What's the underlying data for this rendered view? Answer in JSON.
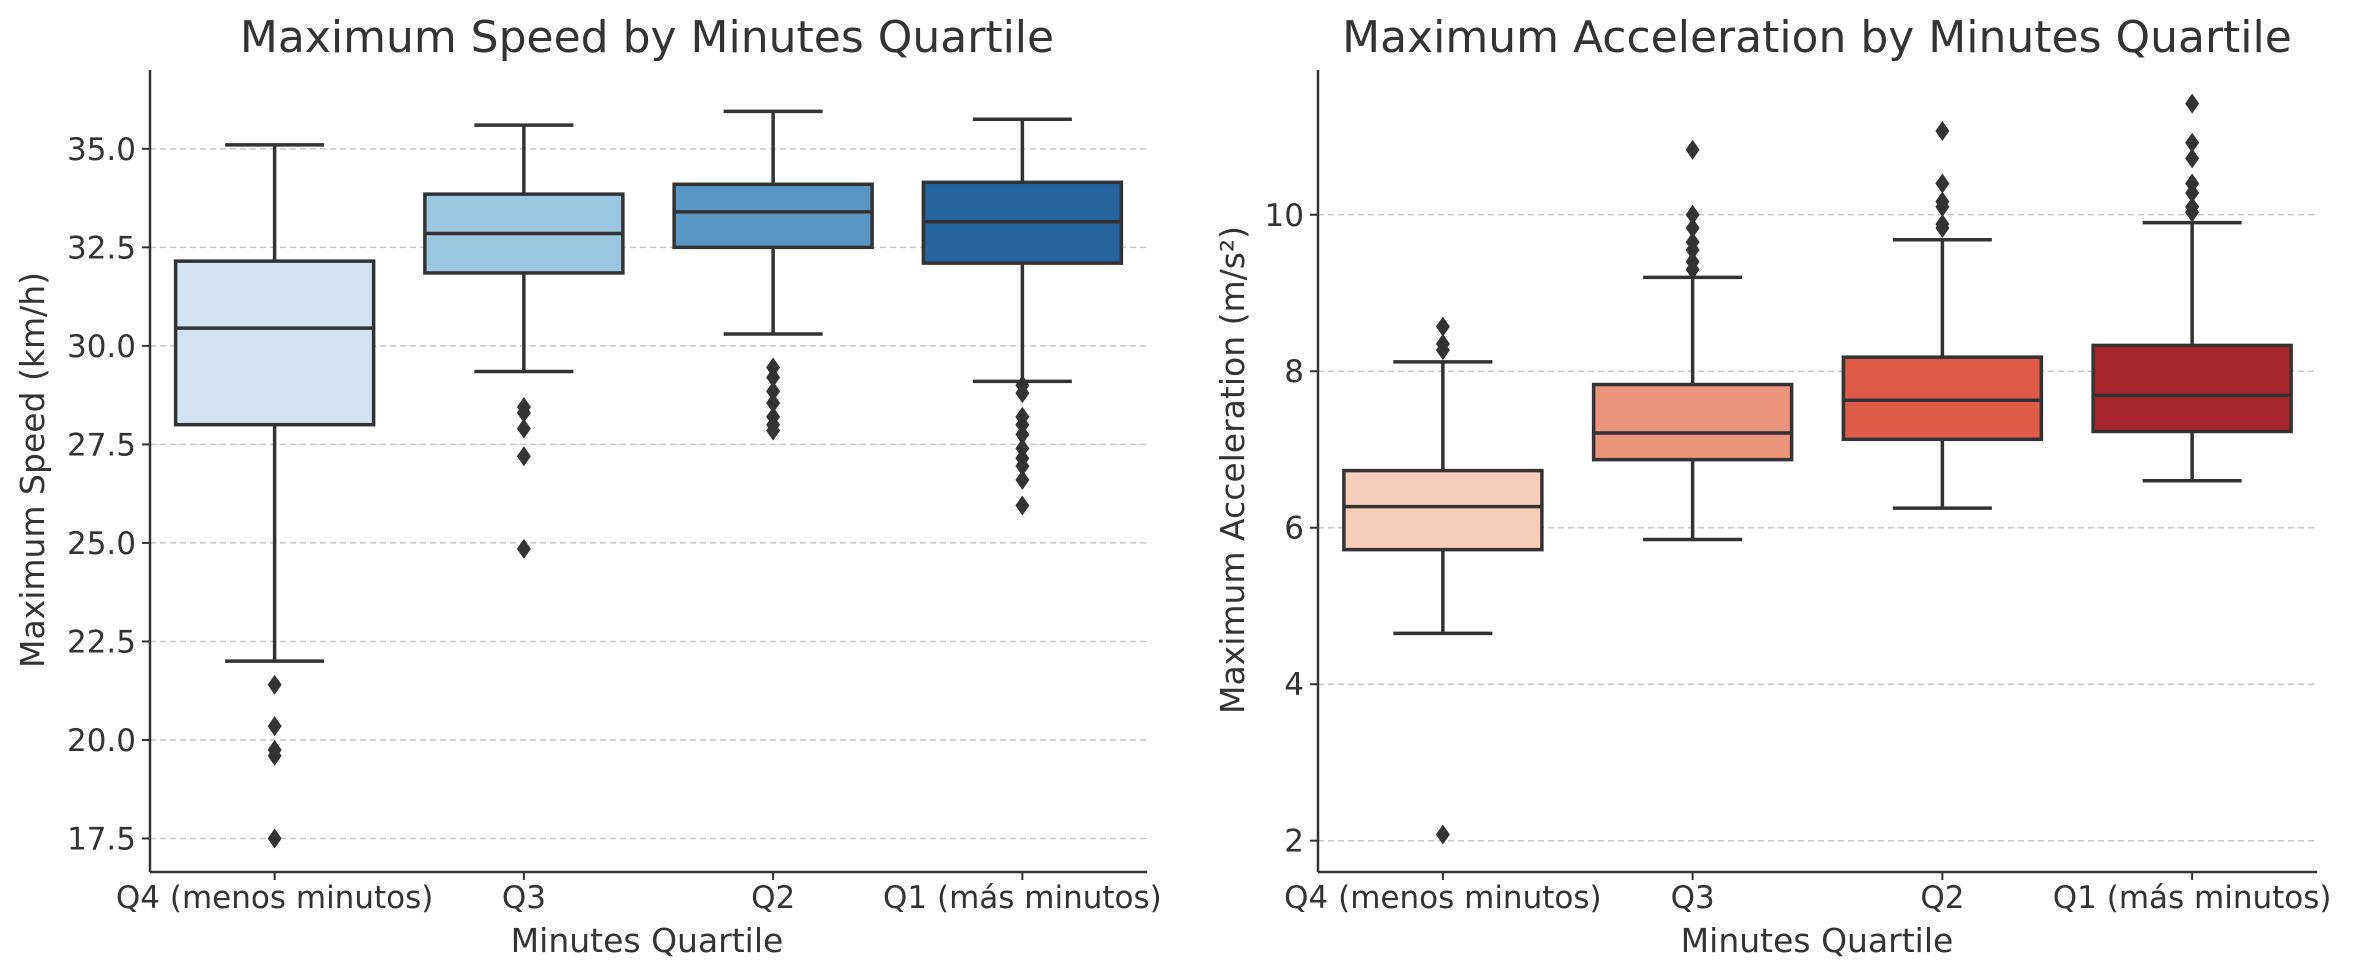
{
  "chart_data": [
    {
      "type": "box",
      "title": "Maximum Speed by Minutes Quartile",
      "xlabel": "Minutes Quartile",
      "ylabel": "Maximum Speed (km/h)",
      "ylim": [
        16.65,
        37.0
      ],
      "yticks": [
        "17.5",
        "20.0",
        "22.5",
        "25.0",
        "27.5",
        "30.0",
        "32.5",
        "35.0"
      ],
      "grid": "horizontal dashed",
      "categories": [
        "Q4 (menos minutos)",
        "Q3",
        "Q2",
        "Q1 (más minutos)"
      ],
      "colors": [
        "#d3e3f2",
        "#9ac7df",
        "#5a96c4",
        "#2763a0"
      ],
      "boxes": [
        {
          "whisker_low": 22.0,
          "q1": 28.0,
          "median": 30.45,
          "q3": 32.15,
          "whisker_high": 35.1,
          "outliers": [
            21.4,
            20.35,
            19.75,
            19.6,
            17.5
          ]
        },
        {
          "whisker_low": 29.35,
          "q1": 31.85,
          "median": 32.85,
          "q3": 33.85,
          "whisker_high": 35.6,
          "outliers": [
            28.45,
            28.3,
            27.9,
            27.2,
            24.85
          ]
        },
        {
          "whisker_low": 30.3,
          "q1": 32.5,
          "median": 33.4,
          "q3": 34.1,
          "whisker_high": 35.95,
          "outliers": [
            29.45,
            29.2,
            28.85,
            28.55,
            28.2,
            28.0,
            27.85
          ]
        },
        {
          "whisker_low": 29.1,
          "q1": 32.1,
          "median": 33.15,
          "q3": 34.15,
          "whisker_high": 35.75,
          "outliers": [
            29.0,
            28.8,
            28.2,
            28.0,
            27.75,
            27.4,
            27.15,
            26.95,
            26.6,
            25.95
          ]
        }
      ]
    },
    {
      "type": "box",
      "title": "Maximum Acceleration by Minutes Quartile",
      "xlabel": "Minutes Quartile",
      "ylabel": "Maximum Acceleration (m/s²)",
      "ylim": [
        1.6,
        11.85
      ],
      "yticks": [
        "2",
        "4",
        "6",
        "8",
        "10"
      ],
      "grid": "horizontal dashed",
      "categories": [
        "Q4 (menos minutos)",
        "Q3",
        "Q2",
        "Q1 (más minutos)"
      ],
      "colors": [
        "#f5cdb9",
        "#ec937b",
        "#df5a49",
        "#a9262f"
      ],
      "boxes": [
        {
          "whisker_low": 4.65,
          "q1": 5.72,
          "median": 6.27,
          "q3": 6.73,
          "whisker_high": 8.12,
          "outliers": [
            8.57,
            8.35,
            8.27,
            2.08
          ]
        },
        {
          "whisker_low": 5.85,
          "q1": 6.87,
          "median": 7.21,
          "q3": 7.83,
          "whisker_high": 9.2,
          "outliers": [
            10.83,
            10.0,
            9.83,
            9.65,
            9.55,
            9.4,
            9.3
          ]
        },
        {
          "whisker_low": 6.25,
          "q1": 7.13,
          "median": 7.63,
          "q3": 8.18,
          "whisker_high": 9.68,
          "outliers": [
            11.07,
            10.4,
            10.17,
            10.1,
            9.88,
            9.83
          ]
        },
        {
          "whisker_low": 6.6,
          "q1": 7.23,
          "median": 7.69,
          "q3": 8.33,
          "whisker_high": 9.9,
          "outliers": [
            11.42,
            10.92,
            10.72,
            10.4,
            10.28,
            10.1,
            10.03
          ]
        }
      ]
    }
  ]
}
